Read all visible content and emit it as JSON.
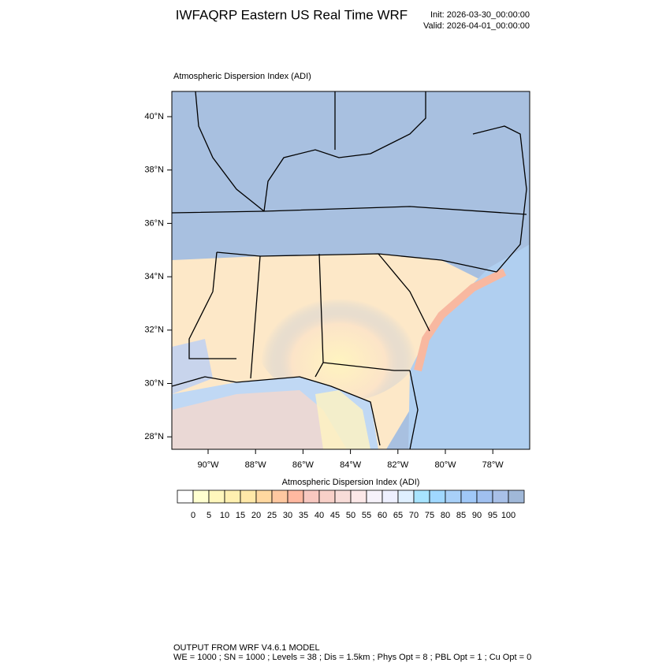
{
  "header": {
    "title": "IWFAQRP Eastern US Real Time WRF",
    "init": "Init: 2026-03-30_00:00:00",
    "valid": "Valid: 2026-04-01_00:00:00"
  },
  "map": {
    "title": "Atmospheric Dispersion Index   (ADI)",
    "lat_labels": [
      "40°N",
      "38°N",
      "36°N",
      "34°N",
      "32°N",
      "30°N",
      "28°N"
    ],
    "lon_labels": [
      "90°W",
      "88°W",
      "86°W",
      "84°W",
      "82°W",
      "80°W",
      "78°W"
    ]
  },
  "colorbar": {
    "title": "Atmospheric Dispersion Index  (ADI)",
    "labels": [
      "0",
      "5",
      "10",
      "15",
      "20",
      "25",
      "30",
      "35",
      "40",
      "45",
      "50",
      "55",
      "60",
      "65",
      "70",
      "75",
      "80",
      "85",
      "90",
      "95",
      "100"
    ],
    "colors": [
      "#ffffff",
      "#ffffd0",
      "#fff7bc",
      "#fff0b0",
      "#ffe8a8",
      "#ffd8a0",
      "#ffc8a0",
      "#ffb8a0",
      "#f8c8c0",
      "#f8d0c8",
      "#f8dcd8",
      "#fce8e8",
      "#f6f2fa",
      "#eef0ff",
      "#e0f0ff",
      "#a8e4ff",
      "#a0d8ff",
      "#a8d0f8",
      "#a0c8f8",
      "#a0c0f0",
      "#a8c0e8",
      "#a0b8d8"
    ]
  },
  "footer": {
    "line1": "OUTPUT FROM WRF V4.6.1 MODEL",
    "line2": "WE = 1000 ; SN = 1000 ; Levels = 38 ; Dis = 1.5km ; Phys Opt = 8 ; PBL Opt = 1 ; Cu Opt = 0"
  }
}
